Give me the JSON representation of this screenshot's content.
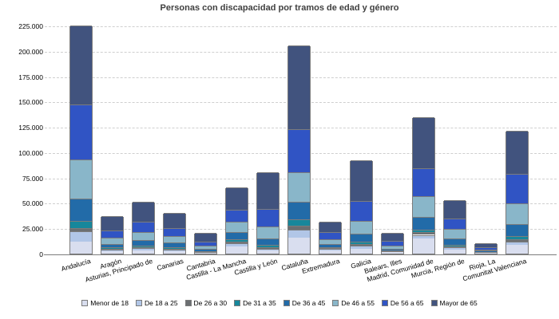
{
  "chart_data": {
    "type": "bar",
    "stacked": true,
    "title": "Personas con discapacidad por tramos de edad y género",
    "xlabel": "",
    "ylabel": "",
    "ylim": [
      0,
      225000
    ],
    "grid": "horizontal-dashed",
    "legend_position": "bottom",
    "categories": [
      "Andalucía",
      "Aragón",
      "Asturias, Principado de",
      "Canarias",
      "Cantabria",
      "Castilla - La Mancha",
      "Castilla y León",
      "Cataluña",
      "Extremadura",
      "Galicia",
      "Balears, Illes",
      "Madrid, Comunidad de",
      "Murcia, Región de",
      "Rioja, La",
      "Comunitat Valenciana"
    ],
    "series": [
      {
        "name": "Menor de 18",
        "color": "#d9deef",
        "values": [
          12000,
          2500,
          3200,
          2300,
          900,
          7000,
          2800,
          16000,
          2900,
          4800,
          1200,
          15000,
          4000,
          800,
          9000
        ]
      },
      {
        "name": "De 18 a 25",
        "color": "#b1c6e7",
        "values": [
          10000,
          1700,
          2200,
          1800,
          700,
          3500,
          2200,
          8000,
          1500,
          2700,
          700,
          3500,
          2000,
          500,
          2500
        ]
      },
      {
        "name": "De 26 a 30",
        "color": "#6b6f72",
        "values": [
          3500,
          900,
          1000,
          900,
          400,
          1500,
          1400,
          3700,
          800,
          2200,
          500,
          3000,
          1200,
          250,
          2600
        ]
      },
      {
        "name": "De 31 a 35",
        "color": "#17879b",
        "values": [
          7000,
          1300,
          1600,
          1500,
          700,
          2500,
          2000,
          6300,
          1200,
          2300,
          700,
          2500,
          1800,
          350,
          2900
        ]
      },
      {
        "name": "De 36 a 45",
        "color": "#226ba8",
        "values": [
          22000,
          3300,
          5000,
          4500,
          1900,
          7000,
          6300,
          17000,
          3100,
          8000,
          2000,
          12500,
          6000,
          1000,
          12000
        ]
      },
      {
        "name": "De 46 a 55",
        "color": "#89b6c9",
        "values": [
          38000,
          6000,
          8000,
          6000,
          2900,
          10000,
          11800,
          29000,
          4700,
          12500,
          2900,
          20500,
          9300,
          1300,
          20500
        ]
      },
      {
        "name": "De 56 a 65",
        "color": "#3054c4",
        "values": [
          55000,
          7100,
          10500,
          8000,
          4700,
          12000,
          17500,
          43000,
          7100,
          19500,
          4700,
          27500,
          10200,
          2400,
          29000
        ]
      },
      {
        "name": "Mayor de 65",
        "color": "#41537e",
        "values": [
          77500,
          14200,
          19500,
          15000,
          8300,
          21500,
          36000,
          82000,
          10200,
          40000,
          7800,
          50000,
          18000,
          3400,
          43000
        ]
      }
    ],
    "yticks": [
      {
        "value": 0,
        "label": "0"
      },
      {
        "value": 25000,
        "label": "25.000"
      },
      {
        "value": 50000,
        "label": "50.000"
      },
      {
        "value": 75000,
        "label": "75.000"
      },
      {
        "value": 100000,
        "label": "100.000"
      },
      {
        "value": 125000,
        "label": "125.000"
      },
      {
        "value": 150000,
        "label": "150.000"
      },
      {
        "value": 175000,
        "label": "175.000"
      },
      {
        "value": 200000,
        "label": "200.000"
      },
      {
        "value": 225000,
        "label": "225.000"
      }
    ]
  },
  "colors": {
    "background": "#ffffff",
    "axis": "#7c7c7c",
    "gridline": "#cfcfcf",
    "bar_border": "#7c7c7c",
    "title_text": "#3f3f3f",
    "tick_text": "#000000"
  }
}
